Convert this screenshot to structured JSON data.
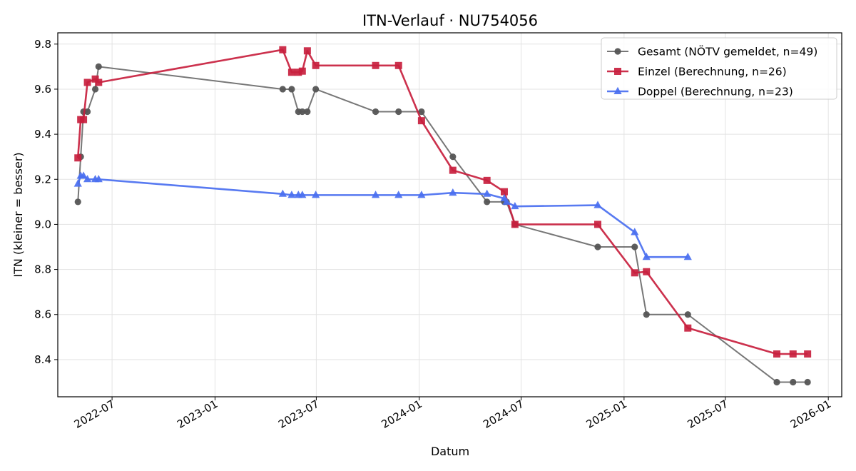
{
  "chart_data": {
    "type": "line",
    "title": "ITN-Verlauf · NU754056",
    "xlabel": "Datum",
    "ylabel": "ITN  (kleiner = besser)",
    "x_range": [
      "2022-03-26",
      "2026-01-25"
    ],
    "ylim": [
      8.235,
      9.85
    ],
    "x_ticks": [
      "2022-07",
      "2023-01",
      "2023-07",
      "2024-01",
      "2024-07",
      "2025-01",
      "2025-07",
      "2026-01"
    ],
    "y_ticks": [
      "8.4",
      "8.6",
      "8.8",
      "9.0",
      "9.2",
      "9.4",
      "9.6",
      "9.8"
    ],
    "grid": true,
    "legend_position": "top-right",
    "series": [
      {
        "name": "Gesamt (NÖTV gemeldet, n=49)",
        "color": "#555555",
        "marker": "circle",
        "points": [
          [
            "2022-05-01",
            9.1
          ],
          [
            "2022-05-06",
            9.3
          ],
          [
            "2022-05-11",
            9.5
          ],
          [
            "2022-05-18",
            9.5
          ],
          [
            "2022-06-01",
            9.6
          ],
          [
            "2022-06-07",
            9.7
          ],
          [
            "2023-05-02",
            9.6
          ],
          [
            "2023-05-18",
            9.6
          ],
          [
            "2023-05-30",
            9.5
          ],
          [
            "2023-06-06",
            9.5
          ],
          [
            "2023-06-15",
            9.5
          ],
          [
            "2023-06-30",
            9.6
          ],
          [
            "2023-10-15",
            9.5
          ],
          [
            "2023-11-25",
            9.5
          ],
          [
            "2024-01-05",
            9.5
          ],
          [
            "2024-03-01",
            9.3
          ],
          [
            "2024-05-01",
            9.1
          ],
          [
            "2024-06-01",
            9.1
          ],
          [
            "2024-06-05",
            9.1
          ],
          [
            "2024-06-20",
            9.0
          ],
          [
            "2024-11-15",
            8.9
          ],
          [
            "2025-01-20",
            8.9
          ],
          [
            "2025-02-10",
            8.6
          ],
          [
            "2025-04-25",
            8.6
          ],
          [
            "2025-10-01",
            8.3
          ],
          [
            "2025-10-30",
            8.3
          ],
          [
            "2025-11-25",
            8.3
          ]
        ]
      },
      {
        "name": "Einzel (Berechnung, n=26)",
        "color": "#c8203e",
        "marker": "square",
        "points": [
          [
            "2022-05-01",
            9.295
          ],
          [
            "2022-05-06",
            9.465
          ],
          [
            "2022-05-11",
            9.465
          ],
          [
            "2022-05-18",
            9.63
          ],
          [
            "2022-06-01",
            9.645
          ],
          [
            "2022-06-07",
            9.63
          ],
          [
            "2023-05-02",
            9.775
          ],
          [
            "2023-05-18",
            9.675
          ],
          [
            "2023-05-30",
            9.675
          ],
          [
            "2023-06-06",
            9.68
          ],
          [
            "2023-06-15",
            9.77
          ],
          [
            "2023-06-30",
            9.705
          ],
          [
            "2023-10-15",
            9.705
          ],
          [
            "2023-11-25",
            9.705
          ],
          [
            "2024-01-05",
            9.46
          ],
          [
            "2024-03-01",
            9.24
          ],
          [
            "2024-05-01",
            9.195
          ],
          [
            "2024-06-01",
            9.145
          ],
          [
            "2024-06-20",
            9.0
          ],
          [
            "2024-11-15",
            9.0
          ],
          [
            "2025-01-20",
            8.785
          ],
          [
            "2025-02-10",
            8.79
          ],
          [
            "2025-04-25",
            8.54
          ],
          [
            "2025-10-01",
            8.425
          ],
          [
            "2025-10-30",
            8.425
          ],
          [
            "2025-11-25",
            8.425
          ]
        ]
      },
      {
        "name": "Doppel (Berechnung, n=23)",
        "color": "#4a6ff0",
        "marker": "triangle",
        "points": [
          [
            "2022-05-01",
            9.18
          ],
          [
            "2022-05-06",
            9.215
          ],
          [
            "2022-05-11",
            9.215
          ],
          [
            "2022-05-18",
            9.2
          ],
          [
            "2022-06-01",
            9.2
          ],
          [
            "2022-06-07",
            9.2
          ],
          [
            "2023-05-02",
            9.135
          ],
          [
            "2023-05-18",
            9.13
          ],
          [
            "2023-05-30",
            9.13
          ],
          [
            "2023-06-06",
            9.13
          ],
          [
            "2023-06-30",
            9.13
          ],
          [
            "2023-10-15",
            9.13
          ],
          [
            "2023-11-25",
            9.13
          ],
          [
            "2024-01-05",
            9.13
          ],
          [
            "2024-03-01",
            9.14
          ],
          [
            "2024-05-01",
            9.135
          ],
          [
            "2024-06-01",
            9.115
          ],
          [
            "2024-06-05",
            9.1
          ],
          [
            "2024-06-20",
            9.08
          ],
          [
            "2024-11-15",
            9.085
          ],
          [
            "2025-01-20",
            8.965
          ],
          [
            "2025-02-10",
            8.855
          ],
          [
            "2025-04-25",
            8.855
          ]
        ]
      }
    ]
  }
}
